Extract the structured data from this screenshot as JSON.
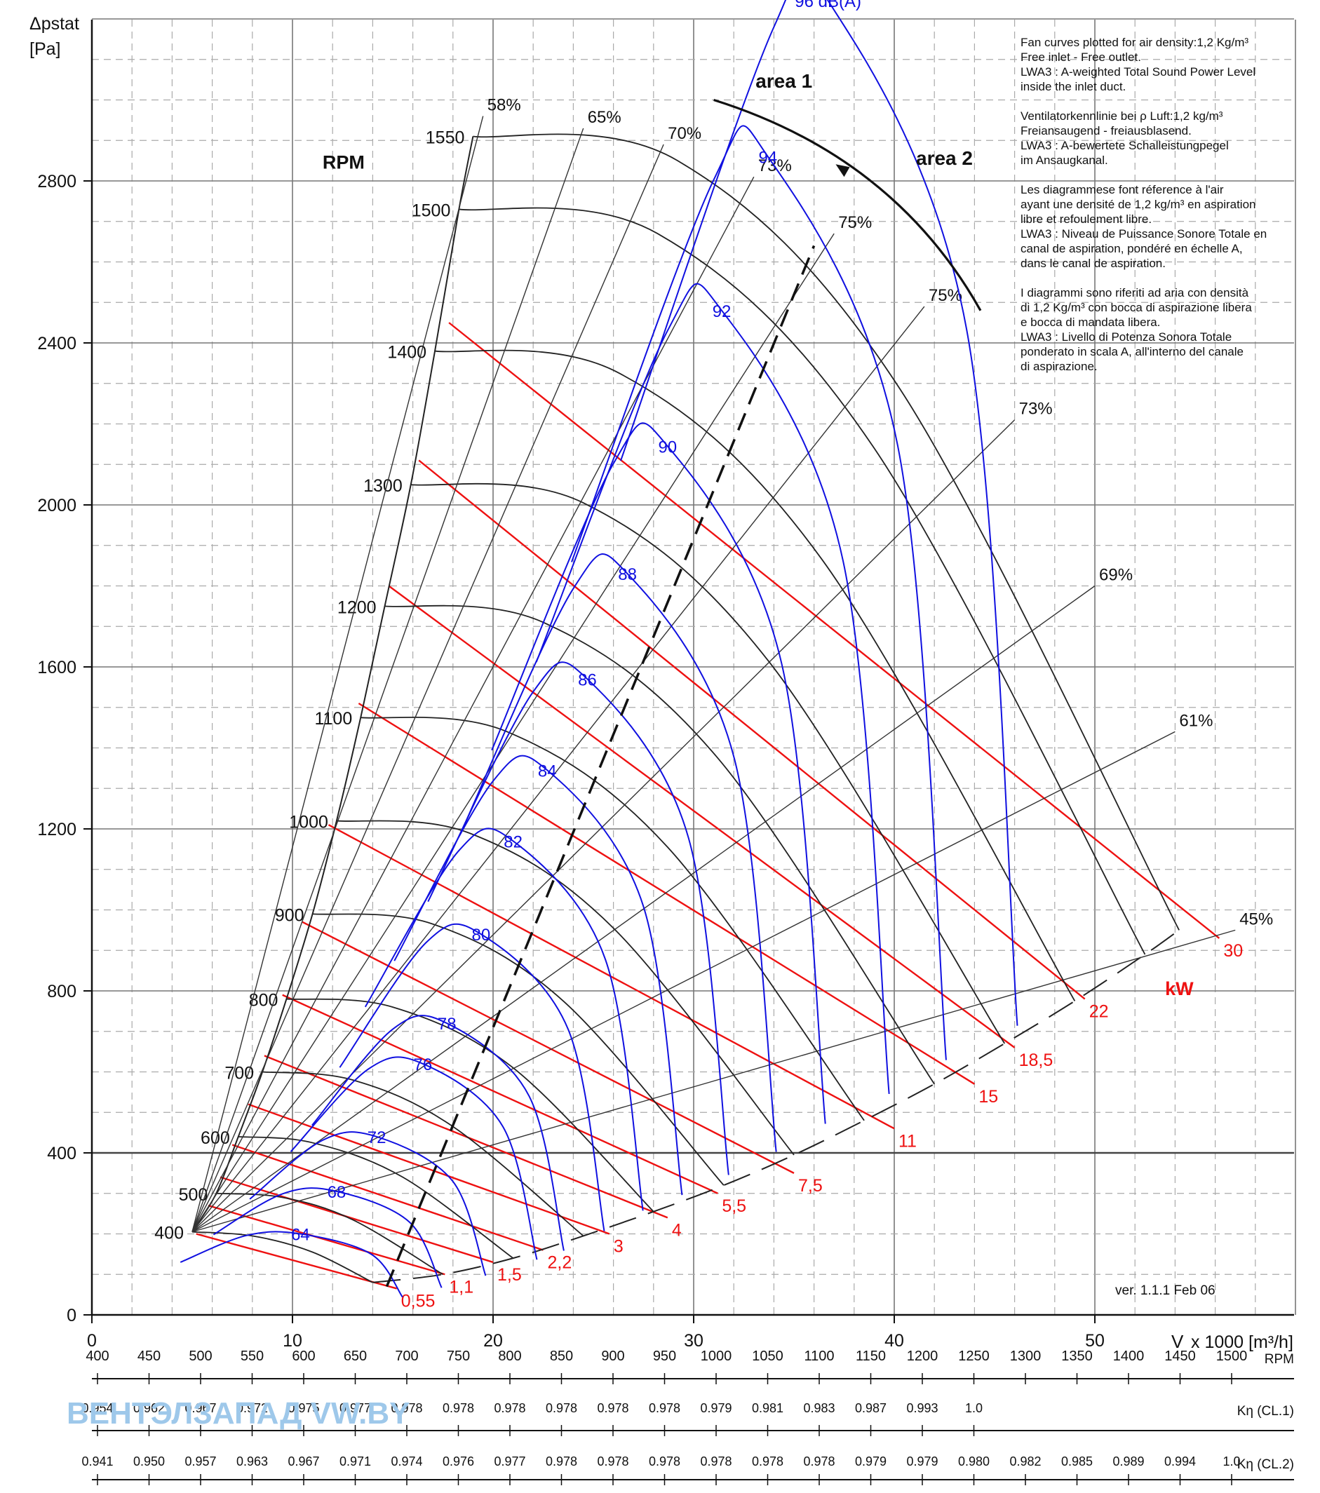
{
  "chart_data": {
    "type": "line",
    "y_title": "Δpstat",
    "y_unit": "[Pa]",
    "x_title": "V",
    "x_unit": "x 1000 [m³/h]",
    "xlim": [
      0,
      60
    ],
    "ylim": [
      0,
      3200
    ],
    "x_ticks": [
      0,
      10,
      20,
      30,
      40,
      50
    ],
    "y_ticks": [
      0,
      400,
      800,
      1200,
      1600,
      2000,
      2400,
      2800
    ],
    "grid": true,
    "rpm_axis_label": "RPM",
    "rpm_curves": [
      {
        "rpm": 400,
        "label": "400",
        "x": [
          5,
          8,
          11,
          14
        ],
        "y": [
          205,
          195,
          155,
          80
        ]
      },
      {
        "rpm": 500,
        "label": "500",
        "x": [
          6.2,
          9.5,
          13,
          17.5
        ],
        "y": [
          300,
          290,
          235,
          100
        ]
      },
      {
        "rpm": 600,
        "label": "600",
        "x": [
          7.3,
          11,
          15.5,
          21
        ],
        "y": [
          440,
          425,
          340,
          140
        ]
      },
      {
        "rpm": 700,
        "label": "700",
        "x": [
          8.5,
          13,
          18,
          24.5
        ],
        "y": [
          600,
          580,
          465,
          195
        ]
      },
      {
        "rpm": 800,
        "label": "800",
        "x": [
          9.7,
          15,
          21,
          28
        ],
        "y": [
          780,
          760,
          610,
          255
        ]
      },
      {
        "rpm": 900,
        "label": "900",
        "x": [
          11,
          17,
          23.5,
          31.5
        ],
        "y": [
          990,
          965,
          775,
          320
        ]
      },
      {
        "rpm": 1000,
        "label": "1000",
        "x": [
          12.2,
          18.8,
          26,
          35
        ],
        "y": [
          1220,
          1190,
          955,
          395
        ]
      },
      {
        "rpm": 1100,
        "label": "1100",
        "x": [
          13.4,
          20.7,
          28.7,
          38.5
        ],
        "y": [
          1475,
          1440,
          1155,
          480
        ]
      },
      {
        "rpm": 1200,
        "label": "1200",
        "x": [
          14.6,
          22.5,
          31.2,
          42
        ],
        "y": [
          1750,
          1710,
          1375,
          570
        ]
      },
      {
        "rpm": 1300,
        "label": "1300",
        "x": [
          15.9,
          24.5,
          33.8,
          45.5
        ],
        "y": [
          2050,
          2005,
          1610,
          670
        ]
      },
      {
        "rpm": 1400,
        "label": "1400",
        "x": [
          17.1,
          26.3,
          36.4,
          49
        ],
        "y": [
          2380,
          2325,
          1865,
          775
        ]
      },
      {
        "rpm": 1500,
        "label": "1500",
        "x": [
          18.3,
          28.2,
          39,
          52.5
        ],
        "y": [
          2730,
          2670,
          2140,
          890
        ]
      },
      {
        "rpm": 1550,
        "label": "1550",
        "x": [
          19,
          29.2,
          40.3,
          54.2
        ],
        "y": [
          2910,
          2850,
          2285,
          950
        ]
      }
    ],
    "efficiency_labels": [
      "58%",
      "65%",
      "70%",
      "73%",
      "75%",
      "75%",
      "73%",
      "69%",
      "61%",
      "45%"
    ],
    "efficiency_points": [
      {
        "label": "58%",
        "x": 19.5,
        "y": 2960
      },
      {
        "label": "65%",
        "x": 24.5,
        "y": 2930
      },
      {
        "label": "70%",
        "x": 28.5,
        "y": 2890
      },
      {
        "label": "73%",
        "x": 33,
        "y": 2810
      },
      {
        "label": "75%",
        "x": 37,
        "y": 2670
      },
      {
        "label": "75%",
        "x": 41.5,
        "y": 2490
      },
      {
        "label": "73%",
        "x": 46,
        "y": 2210
      },
      {
        "label": "69%",
        "x": 50,
        "y": 1800
      },
      {
        "label": "61%",
        "x": 54,
        "y": 1440
      },
      {
        "label": "45%",
        "x": 57,
        "y": 950
      }
    ],
    "sound_unit": "dB(A)",
    "sound_levels": [
      {
        "label": "64",
        "value": 64,
        "x": 9.2,
        "y": 200
      },
      {
        "label": "68",
        "value": 68,
        "x": 11,
        "y": 305
      },
      {
        "label": "72",
        "value": 72,
        "x": 13,
        "y": 440
      },
      {
        "label": "76",
        "value": 76,
        "x": 15.3,
        "y": 620
      },
      {
        "label": "78",
        "value": 78,
        "x": 16.5,
        "y": 720
      },
      {
        "label": "80",
        "value": 80,
        "x": 18.2,
        "y": 940
      },
      {
        "label": "82",
        "value": 82,
        "x": 19.8,
        "y": 1170
      },
      {
        "label": "84",
        "value": 84,
        "x": 21.5,
        "y": 1345
      },
      {
        "label": "86",
        "value": 86,
        "x": 23.5,
        "y": 1570
      },
      {
        "label": "88",
        "value": 88,
        "x": 25.5,
        "y": 1830
      },
      {
        "label": "90",
        "value": 90,
        "x": 27.5,
        "y": 2145
      },
      {
        "label": "92",
        "value": 92,
        "x": 30.2,
        "y": 2480
      },
      {
        "label": "94",
        "value": 94,
        "x": 32.5,
        "y": 2860
      },
      {
        "label": "96 dB(A)",
        "value": 96,
        "x": 35.5,
        "y": 3245
      }
    ],
    "power_unit": "kW",
    "power_lines": [
      {
        "label": "0,55",
        "x1": 5.2,
        "y1": 200,
        "x2": 15.2,
        "y2": 65
      },
      {
        "label": "1,1",
        "x1": 5.8,
        "y1": 270,
        "x2": 17.6,
        "y2": 100
      },
      {
        "label": "1,5",
        "x1": 6.4,
        "y1": 340,
        "x2": 20,
        "y2": 130
      },
      {
        "label": "2,2",
        "x1": 7,
        "y1": 420,
        "x2": 22.5,
        "y2": 160
      },
      {
        "label": "3",
        "x1": 7.8,
        "y1": 520,
        "x2": 25.8,
        "y2": 200
      },
      {
        "label": "4",
        "x1": 8.6,
        "y1": 640,
        "x2": 28.7,
        "y2": 240
      },
      {
        "label": "5,5",
        "x1": 9.5,
        "y1": 790,
        "x2": 31.2,
        "y2": 300
      },
      {
        "label": "7,5",
        "x1": 10.5,
        "y1": 970,
        "x2": 35,
        "y2": 350
      },
      {
        "label": "11",
        "x1": 11.8,
        "y1": 1210,
        "x2": 40,
        "y2": 460
      },
      {
        "label": "15",
        "x1": 13.3,
        "y1": 1510,
        "x2": 44,
        "y2": 570
      },
      {
        "label": "18,5",
        "x1": 14.8,
        "y1": 1800,
        "x2": 46,
        "y2": 660
      },
      {
        "label": "22",
        "x1": 16.3,
        "y1": 2110,
        "x2": 49.5,
        "y2": 780
      },
      {
        "label": "30",
        "x1": 17.8,
        "y1": 2450,
        "x2": 56.2,
        "y2": 930
      }
    ],
    "annotations": {
      "area1": "area 1",
      "area2": "area 2",
      "version": "ver. 1.1.1 Feb 06"
    },
    "notes": {
      "en": "Fan curves plotted for air density:1,2 Kg/m³\nFree inlet - Free outlet.\nLWA3 : A-weighted Total Sound Power Level\ninside the inlet duct.",
      "de": "Ventilatorkennlinie bei ρ Luft:1,2 kg/m³\nFreiansaugend - freiausblasend.\nLWA3 : A-bewertete Schalleistungpegel\nim Ansaugkanal.",
      "fr": "Les diagrammese font réference à l'air\nayant une densité de 1,2 kg/m³ en aspiration\nlibre et refoulement libre.\nLWA3 : Niveau de Puissance Sonore Totale en\ncanal de aspiration, pondéré en échelle A,\ndans le canal de aspiration.",
      "it": "I diagrammi sono riferiti ad aria con densità\ndi 1,2 Kg/m³ con bocca di aspirazione libera\ne bocca di mandata libera.\nLWA3 : Livello di Potenza Sonora Totale\nponderato in scala A, all'interno del canale\ndi aspirazione."
    },
    "bottom_scales": {
      "rpm": {
        "label": "RPM",
        "values": [
          "400",
          "450",
          "500",
          "550",
          "600",
          "650",
          "700",
          "750",
          "800",
          "850",
          "900",
          "950",
          "1000",
          "1050",
          "1100",
          "1150",
          "1200",
          "1250",
          "1300",
          "1350",
          "1400",
          "1450",
          "1500"
        ]
      },
      "k_cl1": {
        "label": "Kη (CL.1)",
        "values": [
          "0.954",
          "0.962",
          "0.967",
          "0.972",
          "0.975",
          "0.977",
          "0.978",
          "0.978",
          "0.978",
          "0.978",
          "0.978",
          "0.978",
          "0.979",
          "0.981",
          "0.983",
          "0.987",
          "0.993",
          "1.0"
        ]
      },
      "k_cl2": {
        "label": "Kη (CL.2)",
        "values": [
          "0.941",
          "0.950",
          "0.957",
          "0.963",
          "0.967",
          "0.971",
          "0.974",
          "0.976",
          "0.977",
          "0.978",
          "0.978",
          "0.978",
          "0.978",
          "0.978",
          "0.978",
          "0.979",
          "0.979",
          "0.980",
          "0.982",
          "0.985",
          "0.989",
          "0.994",
          "1.0"
        ]
      }
    },
    "watermark": "ВЕНТЭЛЗАПАД  VW.BY",
    "colors": {
      "rpm": "#222222",
      "sound": "#1010e0",
      "power": "#ee1111",
      "grid": "#888888",
      "axis": "#111111"
    }
  }
}
